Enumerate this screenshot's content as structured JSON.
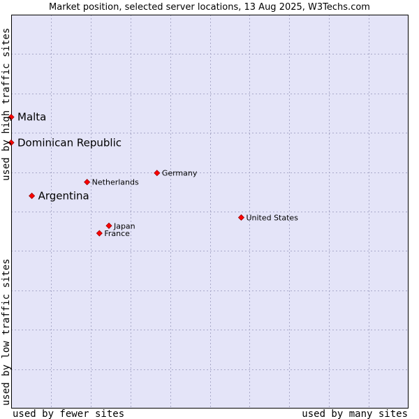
{
  "chart_data": {
    "type": "scatter",
    "title": "Market position, selected server locations, 13 Aug 2025, W3Techs.com",
    "xlabel_left": "used by fewer sites",
    "xlabel_right": "used by many sites",
    "ylabel_top": "used by high traffic sites",
    "ylabel_bottom": "used by low traffic sites",
    "xlim": [
      0,
      10
    ],
    "ylim": [
      0,
      10
    ],
    "grid": true,
    "colors": {
      "plot_bg": "#e4e4f8",
      "grid": "#a8a8c8",
      "marker": "#ff0000",
      "marker_edge": "#990000",
      "frame": "#000000"
    },
    "points": [
      {
        "name": "Malta",
        "x": 0.0,
        "y": 7.4,
        "emphasis": true
      },
      {
        "name": "Dominican Republic",
        "x": 0.0,
        "y": 6.75,
        "emphasis": true
      },
      {
        "name": "Argentina",
        "x": 0.52,
        "y": 5.4,
        "emphasis": true
      },
      {
        "name": "Germany",
        "x": 3.67,
        "y": 5.98,
        "emphasis": false
      },
      {
        "name": "Netherlands",
        "x": 1.91,
        "y": 5.75,
        "emphasis": false
      },
      {
        "name": "United States",
        "x": 5.79,
        "y": 4.85,
        "emphasis": false
      },
      {
        "name": "Japan",
        "x": 2.46,
        "y": 4.64,
        "emphasis": false
      },
      {
        "name": "France",
        "x": 2.22,
        "y": 4.45,
        "emphasis": false
      }
    ]
  }
}
